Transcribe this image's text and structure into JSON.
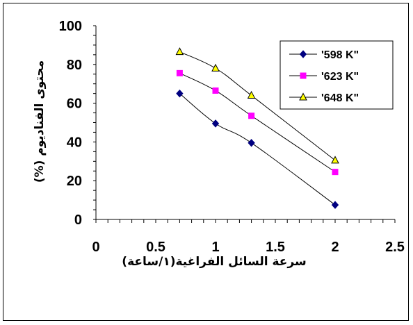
{
  "chart_data": {
    "type": "line",
    "xlabel": "سرعة السائل الفراغية(١/ساعة)",
    "ylabel": "محتوى الفناديوم (%)",
    "xlim": [
      0,
      2.5
    ],
    "ylim": [
      0,
      100
    ],
    "x_ticks": [
      "0",
      "0.5",
      "1",
      "1.5",
      "2",
      "2.5"
    ],
    "y_ticks": [
      "0",
      "20",
      "40",
      "60",
      "80",
      "100"
    ],
    "x": [
      0.7,
      1.0,
      1.3,
      2.0
    ],
    "grid": false,
    "legend_position": "top-right",
    "series": [
      {
        "name": "'598 K\"",
        "values": [
          65,
          49.5,
          39.5,
          7.5
        ],
        "marker": "diamond",
        "color": "#000080"
      },
      {
        "name": "'623 K\"",
        "values": [
          75.5,
          66.5,
          53.5,
          24.5
        ],
        "marker": "square",
        "color": "#ff00ff"
      },
      {
        "name": "'648 K\"",
        "values": [
          86.5,
          78,
          64,
          30.5
        ],
        "marker": "triangle",
        "color": "#ffff00"
      }
    ]
  }
}
